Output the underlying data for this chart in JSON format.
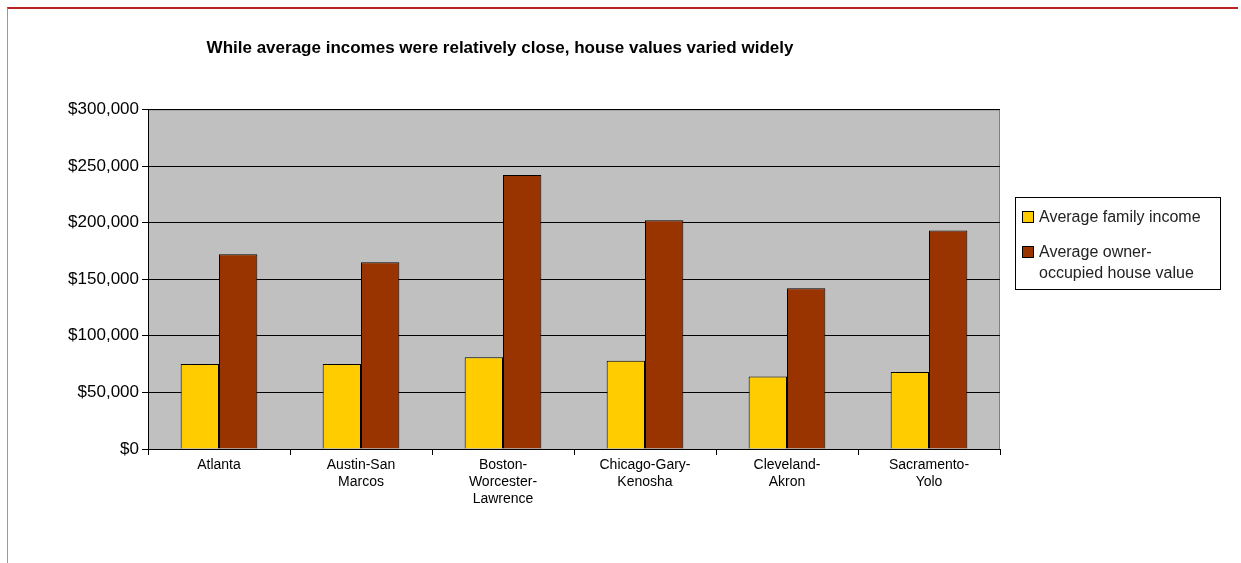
{
  "chart_data": {
    "type": "bar",
    "title": "While average incomes were relatively close, house values varied widely",
    "categories": [
      "Atlanta",
      "Austin-San Marcos",
      "Boston-Worcester-Lawrence",
      "Chicago-Gary-Kenosha",
      "Cleveland-Akron",
      "Sacramento-Yolo"
    ],
    "series": [
      {
        "name": "Average family income",
        "color": "#ffcc00",
        "values": [
          75000,
          75000,
          81000,
          78000,
          64000,
          68000
        ]
      },
      {
        "name": "Average owner-occupied house value",
        "color": "#993300",
        "values": [
          172000,
          165000,
          242000,
          202000,
          142000,
          193000
        ]
      }
    ],
    "ylim": [
      0,
      300000
    ],
    "yticks": [
      {
        "value": 0,
        "label": "$0"
      },
      {
        "value": 50000,
        "label": "$50,000"
      },
      {
        "value": 100000,
        "label": "$100,000"
      },
      {
        "value": 150000,
        "label": "$150,000"
      },
      {
        "value": 200000,
        "label": "$200,000"
      },
      {
        "value": 250000,
        "label": "$250,000"
      },
      {
        "value": 300000,
        "label": "$300,000"
      }
    ],
    "grid": "y",
    "legend": "right"
  }
}
